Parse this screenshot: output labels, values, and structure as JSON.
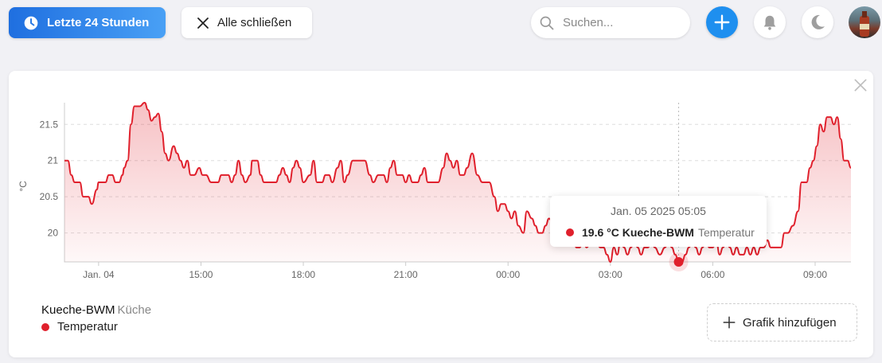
{
  "toolbar": {
    "time_range_label": "Letzte 24 Stunden",
    "close_all_label": "Alle schließen",
    "search_placeholder": "Suchen...",
    "icons": [
      "clock-icon",
      "close-icon",
      "search-icon",
      "plus-icon",
      "bell-icon",
      "moon-icon"
    ]
  },
  "colors": {
    "accent": "#1e8fef",
    "series": "#e0202c"
  },
  "chart_data": {
    "type": "area",
    "ylabel": "°C",
    "ylim": [
      19.6,
      21.8
    ],
    "y_ticks": [
      "20",
      "20.5",
      "21",
      "21.5"
    ],
    "x_ticks": [
      "Jan. 04",
      "15:00",
      "18:00",
      "21:00",
      "00:00",
      "03:00",
      "06:00",
      "09:00"
    ],
    "x_unit": "hours since 11:00 Jan. 04",
    "series": [
      {
        "name": "Temperatur",
        "points": [
          [
            0.0,
            21.0
          ],
          [
            0.1,
            21.0
          ],
          [
            0.2,
            20.8
          ],
          [
            0.3,
            20.7
          ],
          [
            0.45,
            20.7
          ],
          [
            0.55,
            20.5
          ],
          [
            0.7,
            20.5
          ],
          [
            0.8,
            20.4
          ],
          [
            0.95,
            20.6
          ],
          [
            1.0,
            20.7
          ],
          [
            1.2,
            20.7
          ],
          [
            1.3,
            20.8
          ],
          [
            1.4,
            20.8
          ],
          [
            1.5,
            20.7
          ],
          [
            1.6,
            20.7
          ],
          [
            1.7,
            20.8
          ],
          [
            1.75,
            20.9
          ],
          [
            1.85,
            21.0
          ],
          [
            1.95,
            21.5
          ],
          [
            2.05,
            21.75
          ],
          [
            2.2,
            21.75
          ],
          [
            2.35,
            21.8
          ],
          [
            2.45,
            21.7
          ],
          [
            2.55,
            21.55
          ],
          [
            2.65,
            21.6
          ],
          [
            2.75,
            21.65
          ],
          [
            2.85,
            21.4
          ],
          [
            2.95,
            21.1
          ],
          [
            3.05,
            21.0
          ],
          [
            3.2,
            21.2
          ],
          [
            3.3,
            21.1
          ],
          [
            3.4,
            21.0
          ],
          [
            3.5,
            20.9
          ],
          [
            3.6,
            21.0
          ],
          [
            3.7,
            20.8
          ],
          [
            3.8,
            20.8
          ],
          [
            3.95,
            20.9
          ],
          [
            4.05,
            20.8
          ],
          [
            4.15,
            20.8
          ],
          [
            4.3,
            20.7
          ],
          [
            4.5,
            20.7
          ],
          [
            4.6,
            20.8
          ],
          [
            4.8,
            20.8
          ],
          [
            4.9,
            20.7
          ],
          [
            5.0,
            20.8
          ],
          [
            5.1,
            21.0
          ],
          [
            5.2,
            20.8
          ],
          [
            5.3,
            20.7
          ],
          [
            5.45,
            20.8
          ],
          [
            5.5,
            21.0
          ],
          [
            5.65,
            21.0
          ],
          [
            5.75,
            20.8
          ],
          [
            5.85,
            20.7
          ],
          [
            6.2,
            20.7
          ],
          [
            6.3,
            20.8
          ],
          [
            6.4,
            20.9
          ],
          [
            6.5,
            20.8
          ],
          [
            6.6,
            20.7
          ],
          [
            6.7,
            20.9
          ],
          [
            6.8,
            21.0
          ],
          [
            6.9,
            20.9
          ],
          [
            7.0,
            20.7
          ],
          [
            7.2,
            20.8
          ],
          [
            7.3,
            21.0
          ],
          [
            7.4,
            20.7
          ],
          [
            7.55,
            20.7
          ],
          [
            7.65,
            20.8
          ],
          [
            7.75,
            20.8
          ],
          [
            7.85,
            20.7
          ],
          [
            8.0,
            20.9
          ],
          [
            8.1,
            21.0
          ],
          [
            8.2,
            20.7
          ],
          [
            8.3,
            20.8
          ],
          [
            8.45,
            21.0
          ],
          [
            8.8,
            21.0
          ],
          [
            8.95,
            20.8
          ],
          [
            9.05,
            20.7
          ],
          [
            9.2,
            20.8
          ],
          [
            9.35,
            20.8
          ],
          [
            9.45,
            20.7
          ],
          [
            9.55,
            20.9
          ],
          [
            9.65,
            21.0
          ],
          [
            9.75,
            20.8
          ],
          [
            9.9,
            20.8
          ],
          [
            10.0,
            20.7
          ],
          [
            10.1,
            20.8
          ],
          [
            10.2,
            20.7
          ],
          [
            10.35,
            20.7
          ],
          [
            10.45,
            20.8
          ],
          [
            10.55,
            20.9
          ],
          [
            10.65,
            20.7
          ],
          [
            10.75,
            20.7
          ],
          [
            10.95,
            20.7
          ],
          [
            11.1,
            20.9
          ],
          [
            11.2,
            21.1
          ],
          [
            11.3,
            21.0
          ],
          [
            11.4,
            20.9
          ],
          [
            11.5,
            21.0
          ],
          [
            11.6,
            20.8
          ],
          [
            11.7,
            20.8
          ],
          [
            11.8,
            20.9
          ],
          [
            11.95,
            21.1
          ],
          [
            12.1,
            20.8
          ],
          [
            12.25,
            20.7
          ],
          [
            12.45,
            20.7
          ],
          [
            12.6,
            20.5
          ],
          [
            12.7,
            20.3
          ],
          [
            12.8,
            20.4
          ],
          [
            12.9,
            20.4
          ],
          [
            13.0,
            20.3
          ],
          [
            13.1,
            20.2
          ],
          [
            13.2,
            20.3
          ],
          [
            13.3,
            20.1
          ],
          [
            13.45,
            20.0
          ],
          [
            13.55,
            20.3
          ],
          [
            13.7,
            20.2
          ],
          [
            13.8,
            20.1
          ],
          [
            13.9,
            20.0
          ],
          [
            14.0,
            20.0
          ],
          [
            14.1,
            20.1
          ],
          [
            14.2,
            20.2
          ],
          [
            14.35,
            20.1
          ],
          [
            14.5,
            20.1
          ],
          [
            14.6,
            20.3
          ],
          [
            14.7,
            20.4
          ],
          [
            14.8,
            20.3
          ],
          [
            14.9,
            20.0
          ],
          [
            15.0,
            19.8
          ],
          [
            15.1,
            19.8
          ],
          [
            15.2,
            19.9
          ],
          [
            15.3,
            19.8
          ],
          [
            15.45,
            19.9
          ],
          [
            15.6,
            19.9
          ],
          [
            15.7,
            19.8
          ],
          [
            15.8,
            19.8
          ],
          [
            15.9,
            19.7
          ],
          [
            16.0,
            19.6
          ],
          [
            16.1,
            19.8
          ],
          [
            16.2,
            19.7
          ],
          [
            16.3,
            19.9
          ],
          [
            16.4,
            19.8
          ],
          [
            16.5,
            19.7
          ],
          [
            16.6,
            19.8
          ],
          [
            16.7,
            19.9
          ],
          [
            16.8,
            19.8
          ],
          [
            16.9,
            19.7
          ],
          [
            17.0,
            19.8
          ],
          [
            17.1,
            19.8
          ],
          [
            17.2,
            19.9
          ],
          [
            17.3,
            19.8
          ],
          [
            17.45,
            19.7
          ],
          [
            17.6,
            19.8
          ],
          [
            17.7,
            19.9
          ],
          [
            17.8,
            19.8
          ],
          [
            17.9,
            19.7
          ],
          [
            18.0,
            19.6
          ],
          [
            18.1,
            19.6
          ],
          [
            18.2,
            19.7
          ],
          [
            18.3,
            19.8
          ],
          [
            18.4,
            19.9
          ],
          [
            18.5,
            19.8
          ],
          [
            18.6,
            19.7
          ],
          [
            18.7,
            19.8
          ],
          [
            18.8,
            19.9
          ],
          [
            18.9,
            19.8
          ],
          [
            19.0,
            19.8
          ],
          [
            19.1,
            19.9
          ],
          [
            19.2,
            19.7
          ],
          [
            19.3,
            19.8
          ],
          [
            19.4,
            19.9
          ],
          [
            19.5,
            19.8
          ],
          [
            19.6,
            19.7
          ],
          [
            19.7,
            19.8
          ],
          [
            19.8,
            19.7
          ],
          [
            19.9,
            19.7
          ],
          [
            20.0,
            19.8
          ],
          [
            20.1,
            19.7
          ],
          [
            20.2,
            19.8
          ],
          [
            20.3,
            19.7
          ],
          [
            20.4,
            19.8
          ],
          [
            20.5,
            19.8
          ],
          [
            20.6,
            19.9
          ],
          [
            20.7,
            19.8
          ],
          [
            20.8,
            19.8
          ],
          [
            21.0,
            19.8
          ],
          [
            21.1,
            20.0
          ],
          [
            21.2,
            20.0
          ],
          [
            21.35,
            20.1
          ],
          [
            21.5,
            20.3
          ],
          [
            21.6,
            20.7
          ],
          [
            21.75,
            20.7
          ],
          [
            21.85,
            20.9
          ],
          [
            21.95,
            21.0
          ],
          [
            22.05,
            21.2
          ],
          [
            22.15,
            21.5
          ],
          [
            22.25,
            21.4
          ],
          [
            22.35,
            21.6
          ],
          [
            22.45,
            21.6
          ],
          [
            22.55,
            21.5
          ],
          [
            22.65,
            21.6
          ],
          [
            22.75,
            21.3
          ],
          [
            22.85,
            21.0
          ],
          [
            22.95,
            21.0
          ],
          [
            23.05,
            20.9
          ]
        ]
      }
    ],
    "highlight": {
      "x": 18.0,
      "y": 19.6
    }
  },
  "tooltip": {
    "date": "Jan. 05 2025 05:05",
    "value": "19.6 °C Kueche-BWM",
    "attribute": "Temperatur"
  },
  "legend": {
    "device": "Kueche-BWM",
    "room": "Küche",
    "series": "Temperatur"
  },
  "add_graph_label": "Grafik hinzufügen"
}
